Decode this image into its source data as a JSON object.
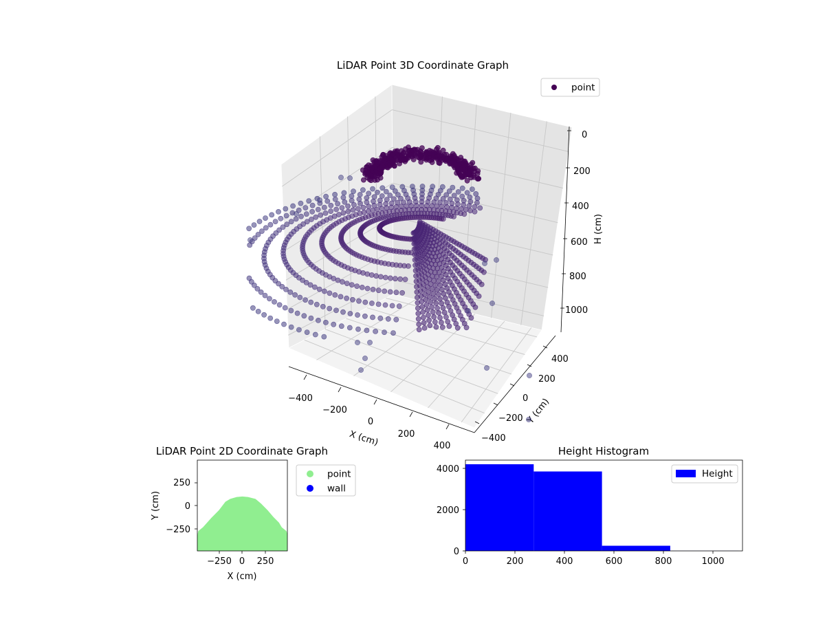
{
  "chart_data": [
    {
      "id": "chart3d",
      "type": "scatter",
      "projection": "3d",
      "title": "LiDAR Point 3D Coordinate Graph",
      "xlabel": "X (cm)",
      "ylabel": "Y (cm)",
      "zlabel": "H (cm)",
      "x_ticks": [
        "−400",
        "−200",
        "0",
        "200",
        "400"
      ],
      "y_ticks": [
        "−400",
        "−200",
        "0",
        "200",
        "400"
      ],
      "z_ticks": [
        "0",
        "200",
        "400",
        "600",
        "800",
        "1000"
      ],
      "zlim": [
        0,
        1100
      ],
      "z_inverted": true,
      "legend": {
        "labels": [
          "point"
        ],
        "placement": "upper right"
      },
      "series": [
        {
          "name": "point",
          "color": "#440154",
          "colormap": "viridis"
        }
      ]
    },
    {
      "id": "chart2d",
      "type": "scatter",
      "title": "LiDAR Point 2D Coordinate Graph",
      "xlabel": "X (cm)",
      "ylabel": "Y (cm)",
      "x_ticks": [
        "−250",
        "0",
        "250"
      ],
      "y_ticks": [
        "250",
        "0",
        "−250"
      ],
      "xlim": [
        -480,
        480
      ],
      "ylim": [
        -480,
        480
      ],
      "legend": {
        "labels": [
          "point",
          "wall"
        ],
        "placement": "outside right"
      },
      "series": [
        {
          "name": "point",
          "color": "#90ee90",
          "extent_profile": [
            [
              -480,
              -320
            ],
            [
              -470,
              -270
            ],
            [
              -420,
              -230
            ],
            [
              -330,
              -130
            ],
            [
              -250,
              -50
            ],
            [
              -180,
              40
            ],
            [
              -130,
              70
            ],
            [
              -60,
              90
            ],
            [
              0,
              95
            ],
            [
              60,
              90
            ],
            [
              140,
              70
            ],
            [
              200,
              20
            ],
            [
              270,
              -50
            ],
            [
              330,
              -120
            ],
            [
              390,
              -180
            ],
            [
              420,
              -230
            ],
            [
              470,
              -270
            ],
            [
              480,
              -300
            ]
          ]
        },
        {
          "name": "wall",
          "color": "#0000ff",
          "values": []
        }
      ]
    },
    {
      "id": "hist",
      "type": "bar",
      "title": "Height Histogram",
      "x_ticks": [
        "0",
        "200",
        "400",
        "600",
        "800",
        "1000"
      ],
      "y_ticks": [
        "0",
        "2000",
        "4000"
      ],
      "xlim": [
        0,
        1120
      ],
      "ylim": [
        0,
        4400
      ],
      "bins": [
        {
          "start": 0,
          "end": 276,
          "count": 4200
        },
        {
          "start": 276,
          "end": 552,
          "count": 3850
        },
        {
          "start": 552,
          "end": 828,
          "count": 250
        },
        {
          "start": 828,
          "end": 1104,
          "count": 5
        }
      ],
      "legend": {
        "labels": [
          "Height"
        ],
        "placement": "upper right"
      },
      "series": [
        {
          "name": "Height",
          "color": "#0000ff"
        }
      ]
    }
  ]
}
